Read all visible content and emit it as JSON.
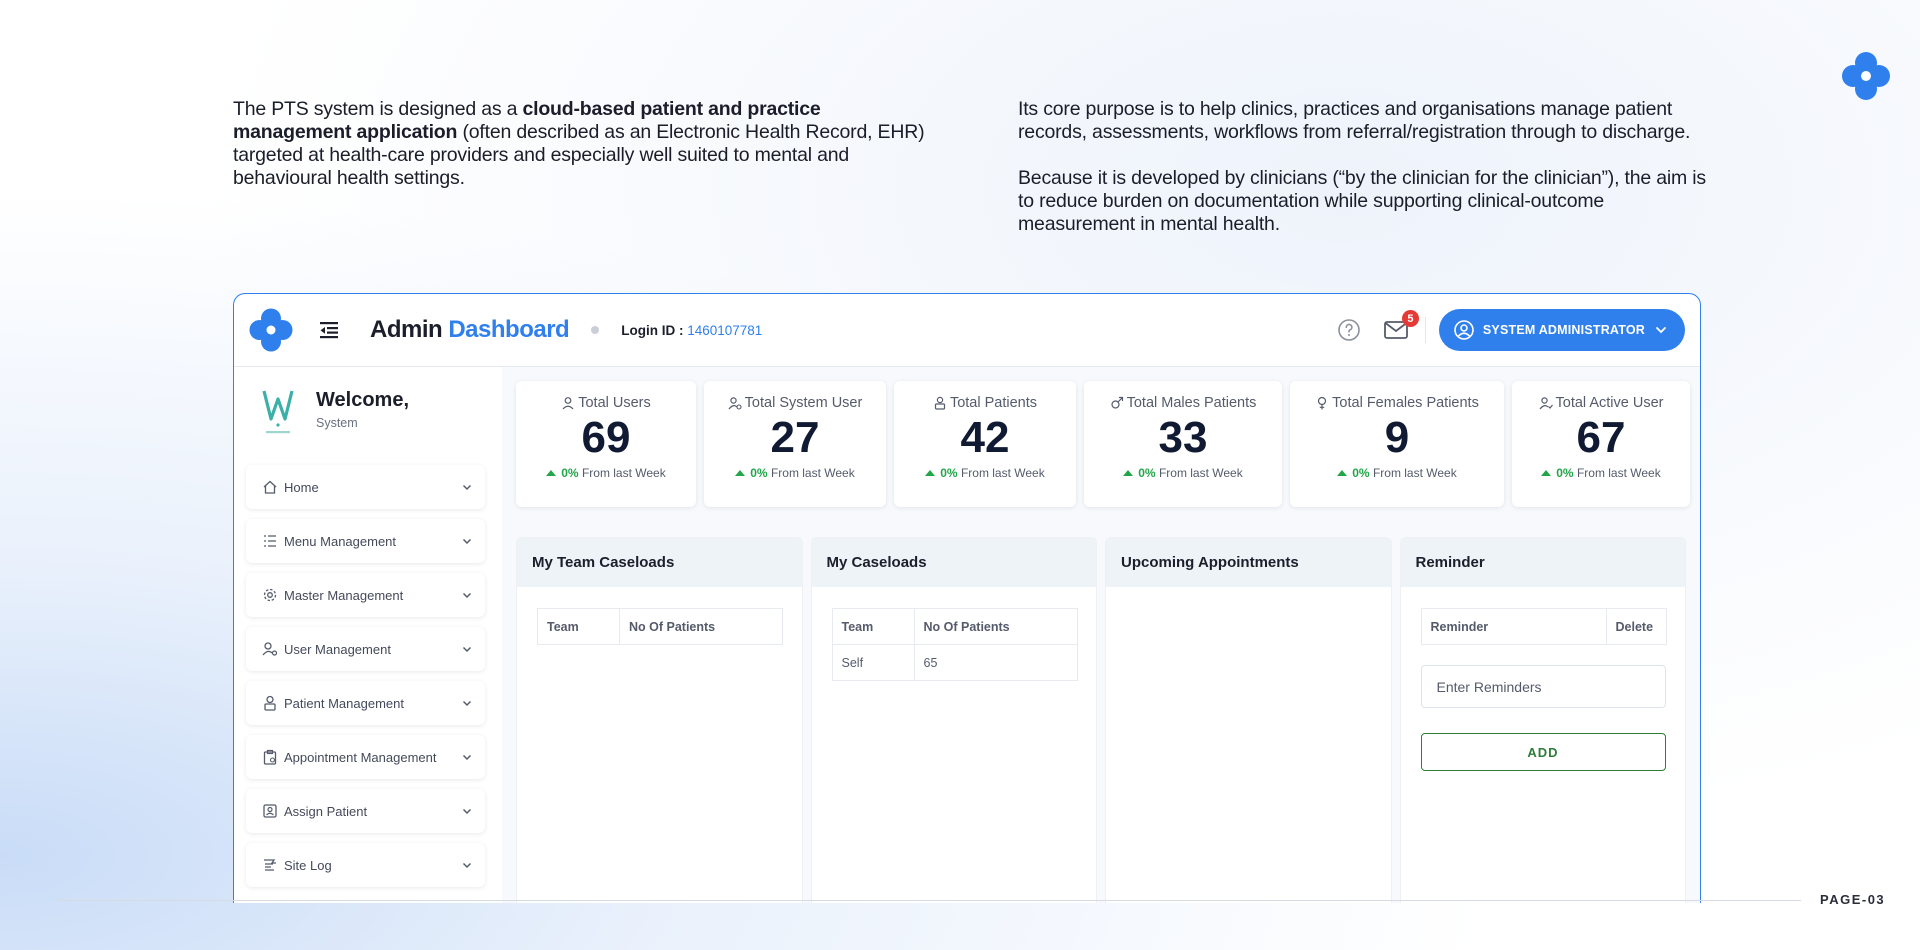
{
  "intro": {
    "left_pre": "The PTS system is designed as a ",
    "left_bold": "cloud-based patient and practice management application",
    "left_post": " (often described as an Electronic Health Record, EHR) targeted at health-care providers and especially well suited to mental and behavioural health settings.",
    "right_p1": "Its core purpose is to help clinics, practices and organisations manage patient records, assessments, workflows from referral/registration through to discharge.",
    "right_p2": "Because it is developed by clinicians (“by the clinician for the clinician”), the aim is to reduce burden on documentation while supporting clinical-outcome measurement in mental health."
  },
  "header": {
    "title_main": "Admin",
    "title_accent": "Dashboard",
    "login_label": "Login ID :",
    "login_value": "1460107781",
    "mail_badge": "5",
    "user_button": "SYSTEM ADMINISTRATOR"
  },
  "sidebar": {
    "welcome_title": "Welcome,",
    "welcome_sub": "System",
    "items": [
      {
        "label": "Home",
        "icon": "home-icon"
      },
      {
        "label": "Menu Management",
        "icon": "list-icon"
      },
      {
        "label": "Master Management",
        "icon": "settings-icon"
      },
      {
        "label": "User Management",
        "icon": "user-gear-icon"
      },
      {
        "label": "Patient Management",
        "icon": "patient-icon"
      },
      {
        "label": "Appointment Management",
        "icon": "clipboard-icon"
      },
      {
        "label": "Assign Patient",
        "icon": "badge-icon"
      },
      {
        "label": "Site Log",
        "icon": "log-icon"
      }
    ]
  },
  "stats": [
    {
      "label": "Total Users",
      "value": "69",
      "pct": "0%",
      "delta_text": "From last Week",
      "icon": "user-icon"
    },
    {
      "label": "Total System User",
      "value": "27",
      "pct": "0%",
      "delta_text": "From last Week",
      "icon": "user-gear-icon"
    },
    {
      "label": "Total Patients",
      "value": "42",
      "pct": "0%",
      "delta_text": "From last Week",
      "icon": "patient-icon"
    },
    {
      "label": "Total Males Patients",
      "value": "33",
      "pct": "0%",
      "delta_text": "From last Week",
      "icon": "male-icon"
    },
    {
      "label": "Total Females Patients",
      "value": "9",
      "pct": "0%",
      "delta_text": "From last Week",
      "icon": "female-icon"
    },
    {
      "label": "Total Active User",
      "value": "67",
      "pct": "0%",
      "delta_text": "From last Week",
      "icon": "user-check-icon"
    }
  ],
  "panels": {
    "team_caseloads": {
      "title": "My Team Caseloads",
      "col1": "Team",
      "col2": "No Of Patients"
    },
    "caseloads": {
      "title": "My Caseloads",
      "col1": "Team",
      "col2": "No Of Patients",
      "rows": [
        {
          "team": "Self",
          "count": "65"
        }
      ]
    },
    "appointments": {
      "title": "Upcoming Appointments"
    },
    "reminder": {
      "title": "Reminder",
      "col1": "Reminder",
      "col2": "Delete",
      "placeholder": "Enter Reminders",
      "add_label": "ADD"
    }
  },
  "footer": {
    "page": "PAGE-03"
  },
  "colors": {
    "accent": "#2f80ed",
    "positive": "#22a649",
    "add_button": "#2e7d3a",
    "badge": "#e53935"
  }
}
